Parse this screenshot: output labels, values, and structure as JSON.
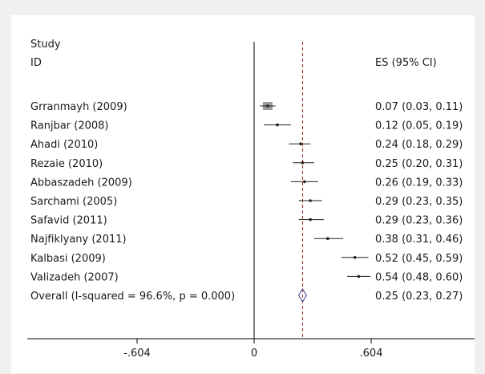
{
  "chart_data": {
    "type": "forest",
    "header": {
      "study_line1": "Study",
      "study_line2": "ID",
      "es_label": "ES (95% CI)"
    },
    "studies": [
      {
        "name": "Grranmayh (2009)",
        "es": 0.07,
        "lo": 0.03,
        "hi": 0.11,
        "text": "0.07 (0.03, 0.11)",
        "weight_box": true
      },
      {
        "name": "Ranjbar (2008)",
        "es": 0.12,
        "lo": 0.05,
        "hi": 0.19,
        "text": "0.12 (0.05, 0.19)"
      },
      {
        "name": "Ahadi (2010)",
        "es": 0.24,
        "lo": 0.18,
        "hi": 0.29,
        "text": "0.24 (0.18, 0.29)"
      },
      {
        "name": "Rezaie (2010)",
        "es": 0.25,
        "lo": 0.2,
        "hi": 0.31,
        "text": "0.25 (0.20, 0.31)"
      },
      {
        "name": "Abbaszadeh (2009)",
        "es": 0.26,
        "lo": 0.19,
        "hi": 0.33,
        "text": "0.26 (0.19, 0.33)"
      },
      {
        "name": "Sarchami (2005)",
        "es": 0.29,
        "lo": 0.23,
        "hi": 0.35,
        "text": "0.29 (0.23, 0.35)"
      },
      {
        "name": "Safavid (2011)",
        "es": 0.29,
        "lo": 0.23,
        "hi": 0.36,
        "text": "0.29 (0.23, 0.36)"
      },
      {
        "name": "Najfiklyany (2011)",
        "es": 0.38,
        "lo": 0.31,
        "hi": 0.46,
        "text": "0.38 (0.31, 0.46)"
      },
      {
        "name": "Kalbasi (2009)",
        "es": 0.52,
        "lo": 0.45,
        "hi": 0.59,
        "text": "0.52 (0.45, 0.59)"
      },
      {
        "name": "Valizadeh (2007)",
        "es": 0.54,
        "lo": 0.48,
        "hi": 0.6,
        "text": "0.54 (0.48, 0.60)"
      }
    ],
    "overall": {
      "label": "Overall  (I-squared = 96.6%, p = 0.000)",
      "es": 0.25,
      "lo": 0.23,
      "hi": 0.27,
      "text": "0.25 (0.23, 0.27)"
    },
    "xaxis": {
      "ticks": [
        -0.604,
        0,
        0.604
      ],
      "tick_labels": [
        "-.604",
        "0",
        ".604"
      ]
    },
    "colors": {
      "point": "#222222",
      "weight_box": "#9a9a9a",
      "overall_line": "#b22222",
      "diamond": "#3c3c8c"
    }
  }
}
